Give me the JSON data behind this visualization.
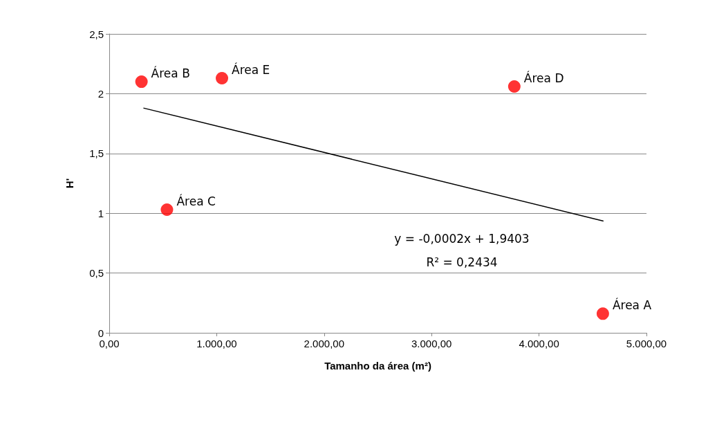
{
  "chart_data": {
    "type": "scatter",
    "xlabel": "Tamanho da área (m²)",
    "ylabel": "H'",
    "x": [
      4594,
      300,
      537,
      3770,
      1049
    ],
    "series": [
      {
        "color": "#ff0000",
        "marker": "circle",
        "values": [
          0.16,
          2.1,
          1.03,
          2.06,
          2.13
        ]
      },
      {
        "type": "line",
        "color": "#000000",
        "x": [
          318,
          4600
        ],
        "values": [
          1.88,
          0.935
        ]
      }
    ],
    "xlim": [
      0,
      5000
    ],
    "xticks": [
      {
        "value": 0,
        "label": "0,00"
      },
      {
        "value": 1000,
        "label": "1.000,00"
      },
      {
        "value": 2000,
        "label": "2.000,00"
      },
      {
        "value": 3000,
        "label": "3.000,00"
      },
      {
        "value": 4000,
        "label": "4.000,00"
      },
      {
        "value": 5000,
        "label": "5.000,00"
      }
    ],
    "ylim": [
      0,
      2.5
    ],
    "yticks": [
      0,
      {
        "value": 0.5,
        "label": "0,5"
      },
      1,
      {
        "value": 1.5,
        "label": "1,5"
      },
      2,
      {
        "value": 2.5,
        "label": "2,5"
      }
    ],
    "grid": "y",
    "annotations": [
      {
        "text": "Área A",
        "x": 4594,
        "y": 0.16
      },
      {
        "text": "Área B",
        "x": 300,
        "y": 2.1
      },
      {
        "text": "Área C",
        "x": 537,
        "y": 1.03
      },
      {
        "text": "Área D",
        "x": 3770,
        "y": 2.06
      },
      {
        "text": "Área E",
        "x": 1049,
        "y": 2.13
      },
      "y = -0,0002x + 1,9403",
      "R² = 0,2434"
    ]
  }
}
